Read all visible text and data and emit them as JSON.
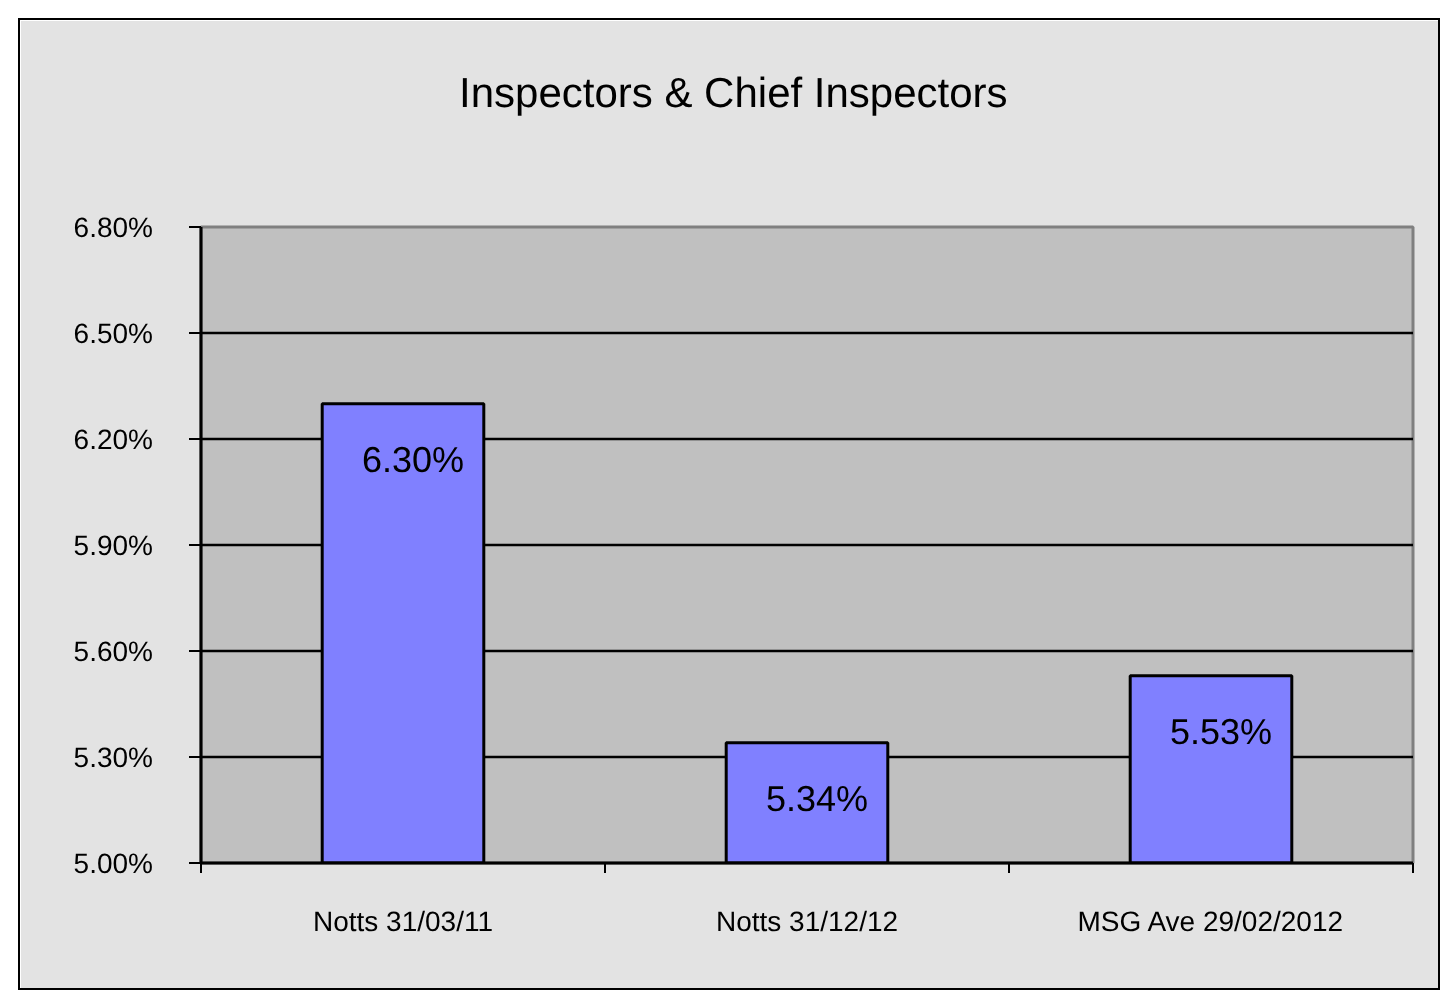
{
  "chart_data": {
    "type": "bar",
    "title": "Inspectors & Chief Inspectors",
    "categories": [
      "Notts 31/03/11",
      "Notts 31/12/12",
      "MSG Ave 29/02/2012"
    ],
    "values": [
      6.3,
      5.34,
      5.53
    ],
    "color": "#8080ff",
    "value_labels": [
      "6.30%",
      "5.34%",
      "5.53%"
    ],
    "ylim": [
      5.0,
      6.8
    ],
    "yticks": [
      {
        "value": 5.0,
        "label": "5.00%"
      },
      {
        "value": 5.3,
        "label": "5.30%"
      },
      {
        "value": 5.6,
        "label": "5.60%"
      },
      {
        "value": 5.9,
        "label": "5.90%"
      },
      {
        "value": 6.2,
        "label": "6.20%"
      },
      {
        "value": 6.5,
        "label": "6.50%"
      },
      {
        "value": 6.8,
        "label": "6.80%"
      }
    ],
    "grid": "y"
  }
}
